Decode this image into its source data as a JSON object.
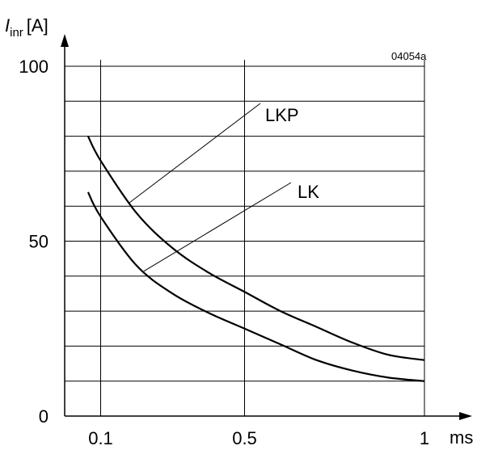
{
  "figure_code": "04054a",
  "chart_data": {
    "type": "line",
    "title": "",
    "ylabel": {
      "main": "I",
      "sub": "inr",
      "unit": "[A]"
    },
    "xlabel": "ms",
    "ylim": [
      0,
      100
    ],
    "xlim": [
      0,
      1
    ],
    "x_ticks": [
      {
        "value": 0.1,
        "label": "0.1"
      },
      {
        "value": 0.5,
        "label": "0.5"
      },
      {
        "value": 1,
        "label": "1"
      }
    ],
    "y_ticks": [
      {
        "value": 0,
        "label": "0"
      },
      {
        "value": 50,
        "label": "50"
      },
      {
        "value": 100,
        "label": "100"
      }
    ],
    "grid": true,
    "y_grid": [
      10,
      20,
      30,
      40,
      50,
      60,
      70,
      80,
      90,
      100
    ],
    "x_grid": [
      0.1,
      0.5,
      1
    ],
    "series": [
      {
        "name": "LKP",
        "x": [
          0.065,
          0.1,
          0.2,
          0.3,
          0.4,
          0.5,
          0.6,
          0.7,
          0.8,
          0.9,
          1.0
        ],
        "y": [
          80,
          73,
          58,
          48,
          41,
          35.5,
          30,
          25.5,
          21,
          17.5,
          16
        ]
      },
      {
        "name": "LK",
        "x": [
          0.065,
          0.1,
          0.2,
          0.3,
          0.4,
          0.5,
          0.6,
          0.7,
          0.8,
          0.9,
          1.0
        ],
        "y": [
          64,
          57,
          43,
          35,
          29.5,
          25,
          20.5,
          16,
          13,
          11,
          10
        ]
      }
    ]
  }
}
